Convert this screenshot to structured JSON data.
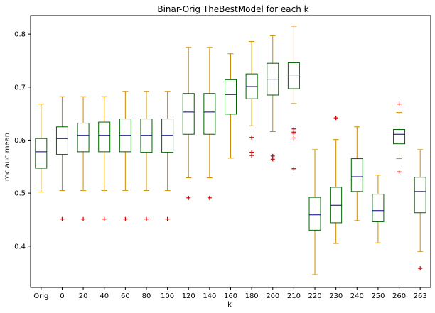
{
  "chart_data": {
    "type": "box",
    "title": "Binar-Orig    TheBestModel for each k",
    "xlabel": "k",
    "ylabel": "roc auc mean",
    "ylim": [
      0.322,
      0.835
    ],
    "yticks": [
      "0.4",
      "0.5",
      "0.6",
      "0.7",
      "0.8"
    ],
    "yticks_values": [
      0.4,
      0.5,
      0.6,
      0.7,
      0.8
    ],
    "grid": false,
    "colors": {
      "box": "#006400",
      "whisker": "#d08a00",
      "median": "#000080",
      "flier": "#cc0000"
    },
    "categories": [
      "Orig",
      "0",
      "20",
      "40",
      "60",
      "80",
      "100",
      "120",
      "140",
      "160",
      "180",
      "200",
      "210",
      "220",
      "230",
      "240",
      "250",
      "260",
      "263"
    ],
    "boxes": [
      {
        "whislo": 0.502,
        "q1": 0.547,
        "med": 0.578,
        "q3": 0.603,
        "whishi": 0.668,
        "fliers": []
      },
      {
        "whislo": 0.505,
        "q1": 0.573,
        "med": 0.603,
        "q3": 0.625,
        "whishi": 0.682,
        "fliers": [
          0.451
        ]
      },
      {
        "whislo": 0.505,
        "q1": 0.578,
        "med": 0.609,
        "q3": 0.632,
        "whishi": 0.682,
        "fliers": [
          0.451
        ]
      },
      {
        "whislo": 0.505,
        "q1": 0.578,
        "med": 0.609,
        "q3": 0.634,
        "whishi": 0.682,
        "fliers": [
          0.451
        ]
      },
      {
        "whislo": 0.505,
        "q1": 0.578,
        "med": 0.609,
        "q3": 0.64,
        "whishi": 0.692,
        "fliers": [
          0.451
        ]
      },
      {
        "whislo": 0.505,
        "q1": 0.577,
        "med": 0.609,
        "q3": 0.64,
        "whishi": 0.692,
        "fliers": [
          0.451
        ]
      },
      {
        "whislo": 0.505,
        "q1": 0.577,
        "med": 0.609,
        "q3": 0.64,
        "whishi": 0.692,
        "fliers": [
          0.451
        ]
      },
      {
        "whislo": 0.529,
        "q1": 0.611,
        "med": 0.653,
        "q3": 0.688,
        "whishi": 0.775,
        "fliers": [
          0.491
        ]
      },
      {
        "whislo": 0.529,
        "q1": 0.611,
        "med": 0.653,
        "q3": 0.688,
        "whishi": 0.775,
        "fliers": [
          0.491
        ]
      },
      {
        "whislo": 0.566,
        "q1": 0.649,
        "med": 0.686,
        "q3": 0.714,
        "whishi": 0.763,
        "fliers": []
      },
      {
        "whislo": 0.627,
        "q1": 0.678,
        "med": 0.701,
        "q3": 0.725,
        "whishi": 0.786,
        "fliers": [
          0.605,
          0.577,
          0.571
        ]
      },
      {
        "whislo": 0.616,
        "q1": 0.685,
        "med": 0.715,
        "q3": 0.745,
        "whishi": 0.797,
        "fliers": [
          0.57,
          0.564
        ]
      },
      {
        "whislo": 0.669,
        "q1": 0.697,
        "med": 0.723,
        "q3": 0.746,
        "whishi": 0.815,
        "fliers": [
          0.621,
          0.615,
          0.613,
          0.604,
          0.546
        ]
      },
      {
        "whislo": 0.346,
        "q1": 0.43,
        "med": 0.459,
        "q3": 0.492,
        "whishi": 0.582,
        "fliers": []
      },
      {
        "whislo": 0.405,
        "q1": 0.444,
        "med": 0.477,
        "q3": 0.511,
        "whishi": 0.601,
        "fliers": [
          0.642
        ]
      },
      {
        "whislo": 0.448,
        "q1": 0.503,
        "med": 0.531,
        "q3": 0.565,
        "whishi": 0.625,
        "fliers": []
      },
      {
        "whislo": 0.406,
        "q1": 0.446,
        "med": 0.467,
        "q3": 0.498,
        "whishi": 0.534,
        "fliers": []
      },
      {
        "whislo": 0.565,
        "q1": 0.593,
        "med": 0.611,
        "q3": 0.62,
        "whishi": 0.652,
        "fliers": [
          0.668,
          0.54
        ]
      },
      {
        "whislo": 0.39,
        "q1": 0.463,
        "med": 0.503,
        "q3": 0.53,
        "whishi": 0.582,
        "fliers": [
          0.358
        ]
      }
    ]
  }
}
